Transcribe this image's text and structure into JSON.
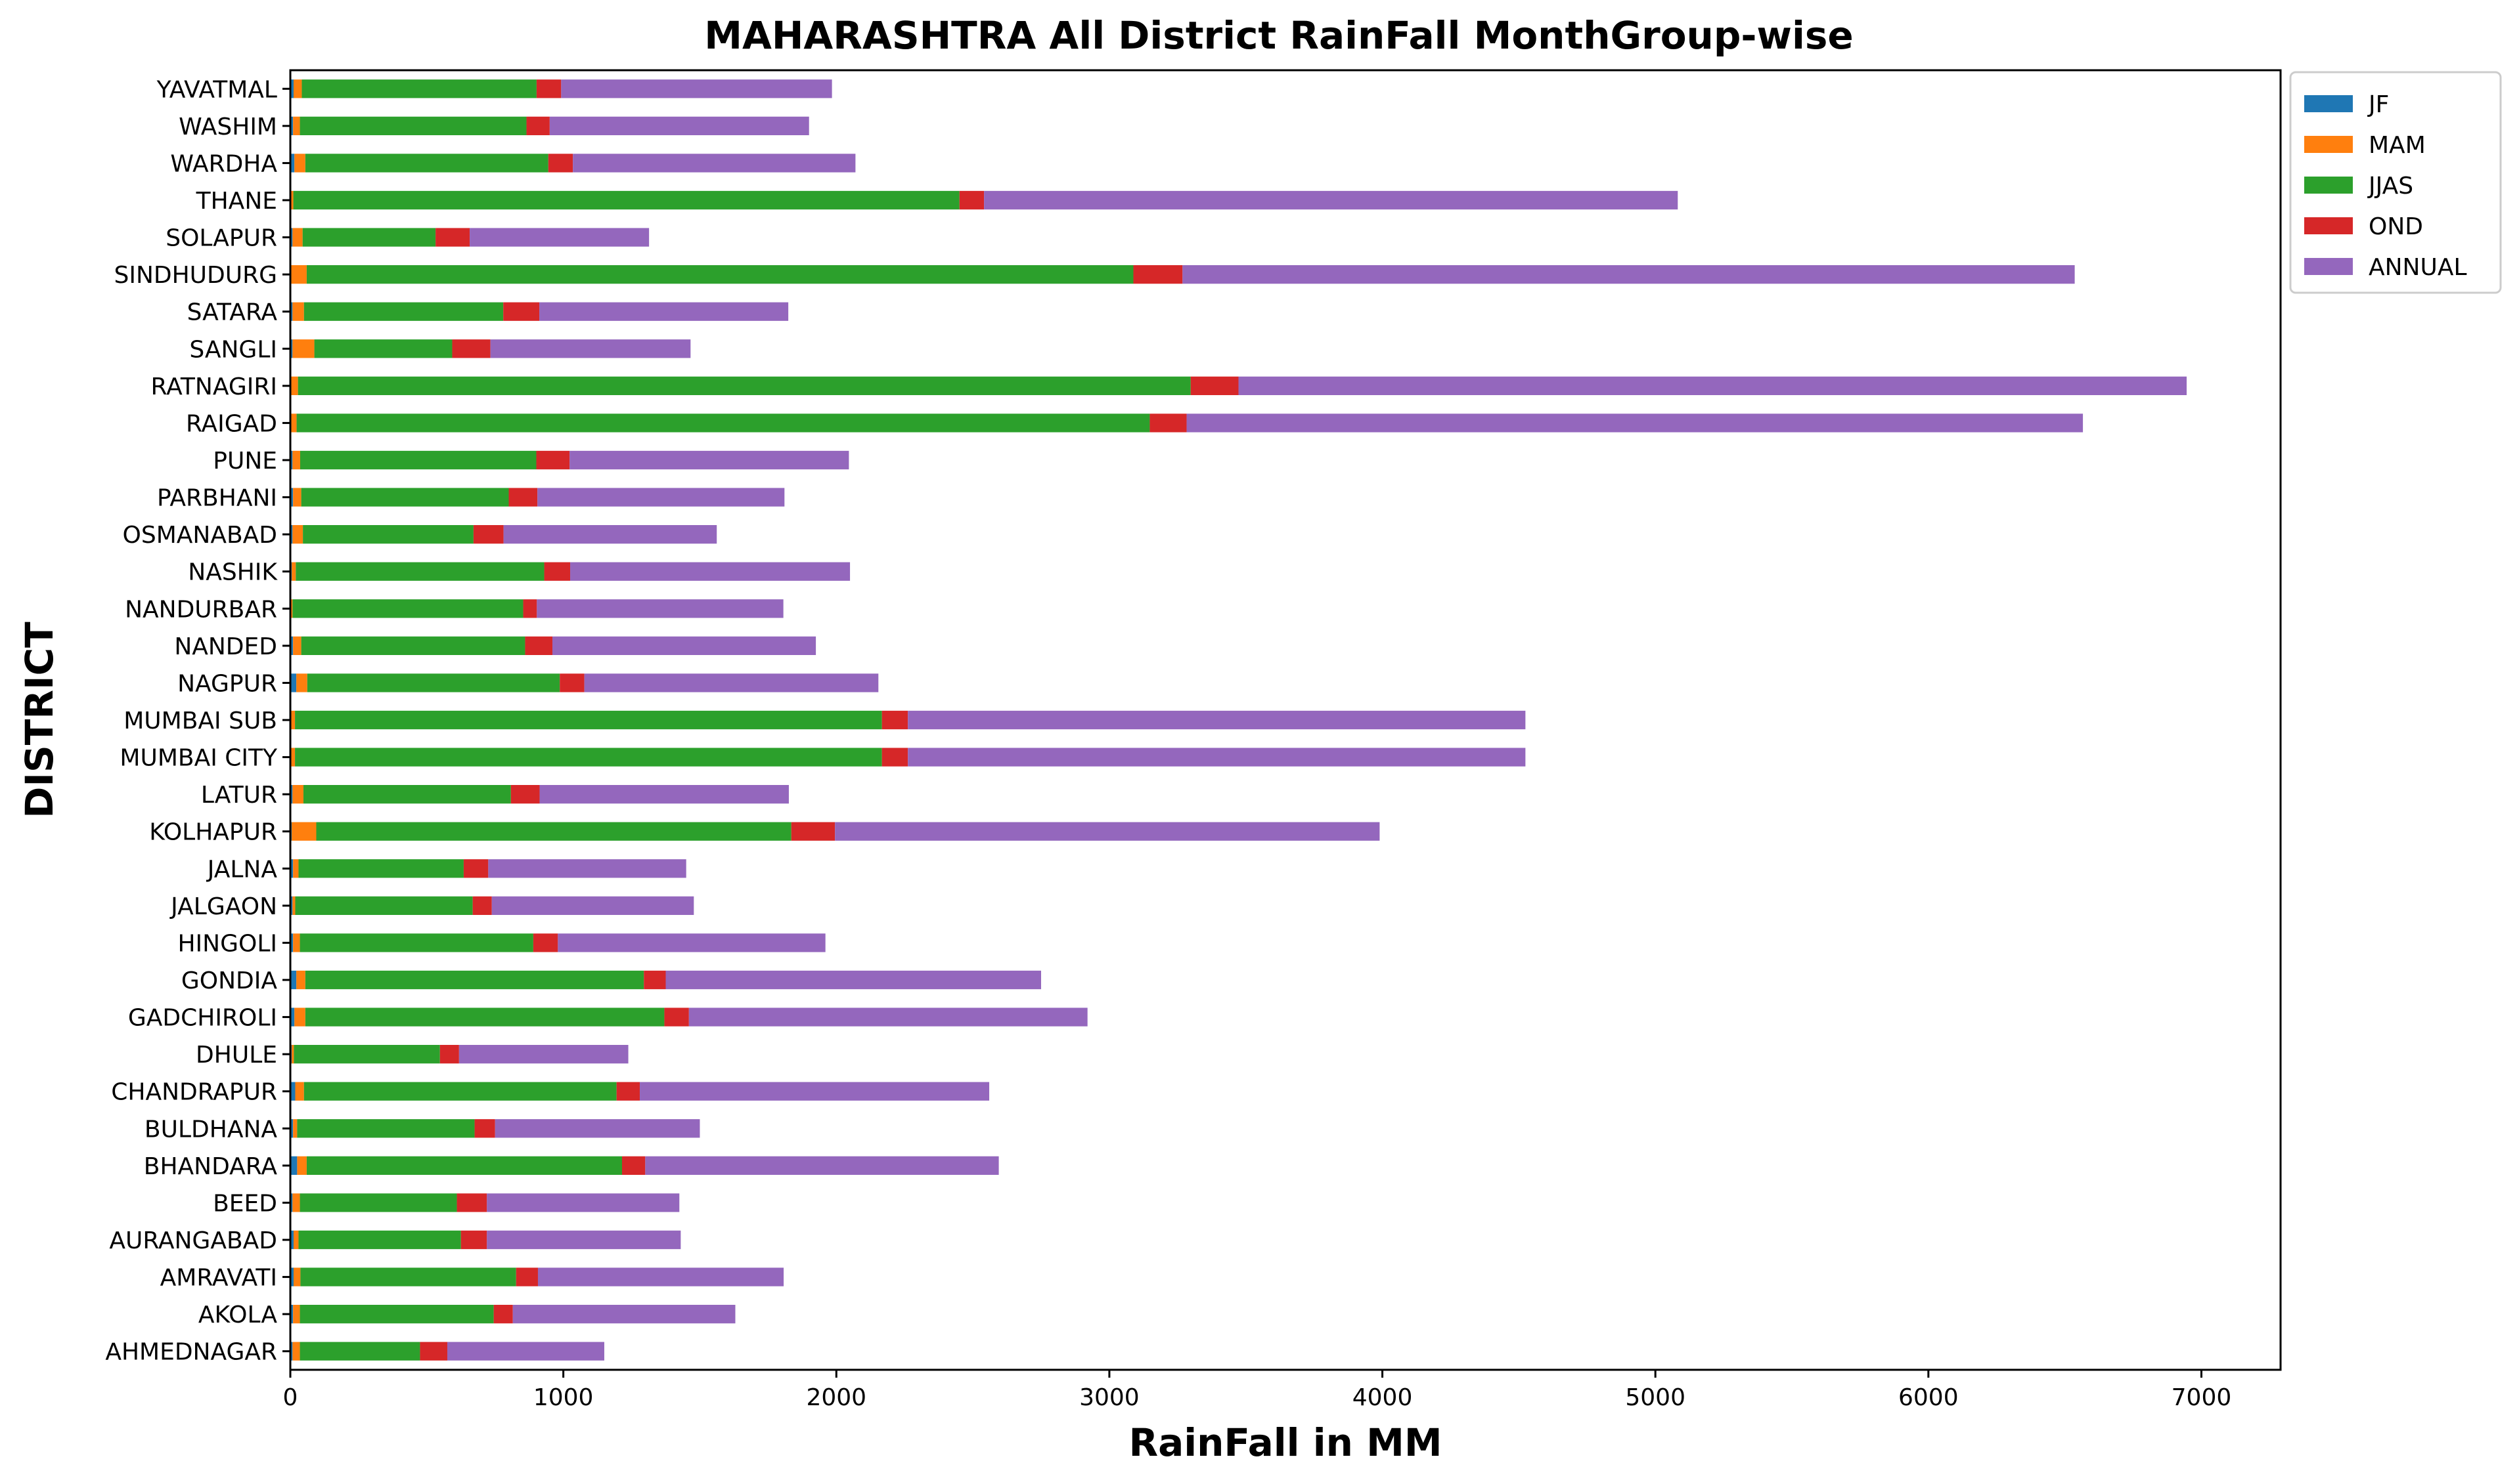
{
  "chart_data": {
    "type": "bar",
    "orientation": "horizontal",
    "stacked": true,
    "title": "MAHARASHTRA All District RainFall MonthGroup-wise",
    "xlabel": "RainFall in MM",
    "ylabel": "DISTRICT",
    "xlim": [
      0,
      7290
    ],
    "xticks": [
      0,
      1000,
      2000,
      3000,
      4000,
      5000,
      6000,
      7000
    ],
    "grid": false,
    "legend_position": "upper-right-outside",
    "categories": [
      "AHMEDNAGAR",
      "AKOLA",
      "AMRAVATI",
      "AURANGABAD",
      "BEED",
      "BHANDARA",
      "BULDHANA",
      "CHANDRAPUR",
      "DHULE",
      "GADCHIROLI",
      "GONDIA",
      "HINGOLI",
      "JALGAON",
      "JALNA",
      "KOLHAPUR",
      "LATUR",
      "MUMBAI CITY",
      "MUMBAI SUB",
      "NAGPUR",
      "NANDED",
      "NANDURBAR",
      "NASHIK",
      "OSMANABAD",
      "PARBHANI",
      "PUNE",
      "RAIGAD",
      "RATNAGIRI",
      "SANGLI",
      "SATARA",
      "SINDHUDURG",
      "SOLAPUR",
      "THANE",
      "WARDHA",
      "WASHIM",
      "YAVATMAL"
    ],
    "series": [
      {
        "name": "JF",
        "color": "#1f77b4",
        "values": [
          8,
          10,
          12,
          12,
          8,
          25,
          10,
          18,
          5,
          15,
          22,
          10,
          8,
          10,
          5,
          8,
          2,
          2,
          22,
          10,
          3,
          5,
          8,
          10,
          8,
          3,
          3,
          8,
          8,
          3,
          8,
          3,
          15,
          10,
          12
        ]
      },
      {
        "name": "MAM",
        "color": "#ff7f0e",
        "values": [
          27,
          25,
          25,
          18,
          27,
          35,
          15,
          32,
          8,
          40,
          33,
          25,
          10,
          20,
          90,
          40,
          15,
          15,
          40,
          30,
          5,
          15,
          38,
          30,
          28,
          20,
          25,
          80,
          42,
          57,
          37,
          8,
          40,
          25,
          30
        ]
      },
      {
        "name": "JJAS",
        "color": "#2ca02c",
        "values": [
          440,
          710,
          790,
          595,
          575,
          1155,
          650,
          1145,
          535,
          1315,
          1240,
          855,
          650,
          605,
          1740,
          760,
          2150,
          2150,
          925,
          820,
          845,
          910,
          625,
          760,
          865,
          3125,
          3270,
          505,
          730,
          3028,
          487,
          2440,
          890,
          830,
          860
        ]
      },
      {
        "name": "OND",
        "color": "#d62728",
        "values": [
          100,
          70,
          80,
          95,
          110,
          85,
          75,
          85,
          70,
          90,
          80,
          90,
          70,
          90,
          160,
          105,
          95,
          95,
          90,
          100,
          50,
          95,
          110,
          105,
          122,
          135,
          175,
          140,
          132,
          180,
          125,
          90,
          90,
          85,
          90
        ]
      },
      {
        "name": "ANNUAL",
        "color": "#9467bd",
        "values": [
          575,
          815,
          900,
          710,
          705,
          1295,
          750,
          1280,
          620,
          1460,
          1375,
          980,
          740,
          725,
          1995,
          913,
          2262,
          2262,
          1077,
          965,
          903,
          1025,
          781,
          905,
          1023,
          3283,
          3473,
          733,
          912,
          3268,
          657,
          2541,
          1035,
          950,
          992
        ]
      }
    ]
  }
}
